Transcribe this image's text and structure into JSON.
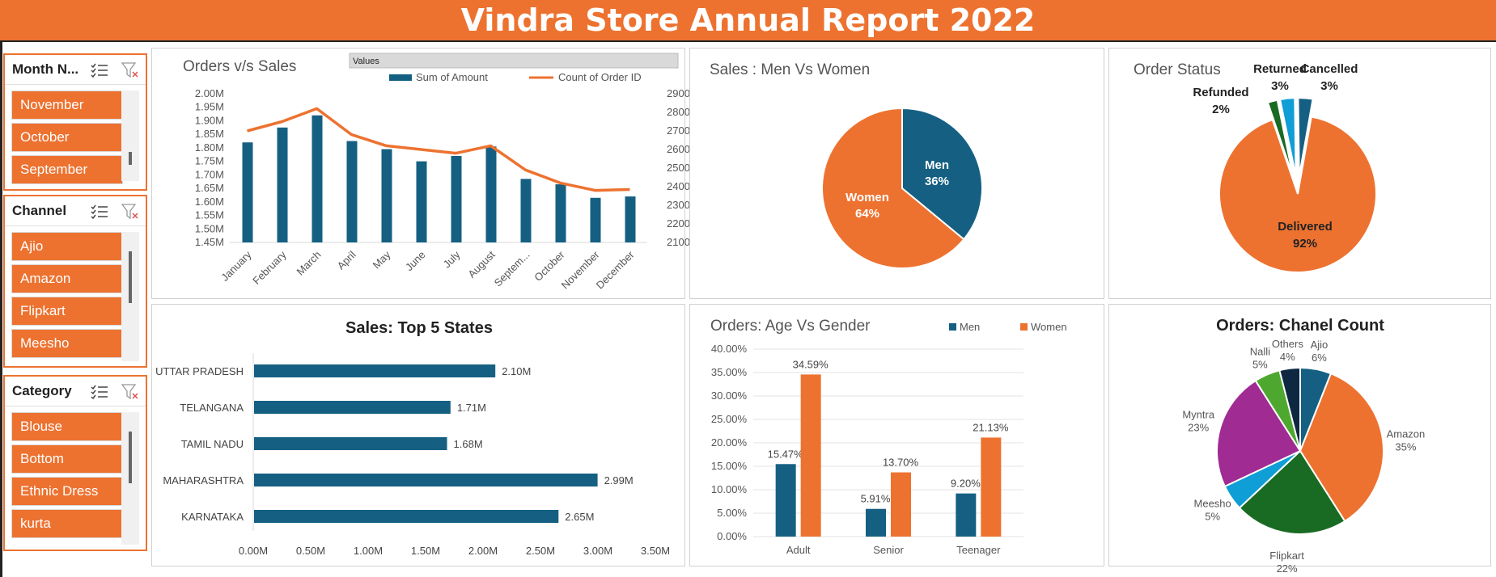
{
  "report": {
    "title": "Vindra Store Annual Report 2022"
  },
  "slicers": [
    {
      "title": "Month N...",
      "items": [
        "November",
        "October",
        "September"
      ]
    },
    {
      "title": "Channel",
      "items": [
        "Ajio",
        "Amazon",
        "Flipkart",
        "Meesho"
      ]
    },
    {
      "title": "Category",
      "items": [
        "Blouse",
        "Bottom",
        "Ethnic Dress",
        "kurta"
      ]
    }
  ],
  "chart_data": [
    {
      "id": "orders_vs_sales",
      "type": "bar+line",
      "title": "Orders v/s Sales",
      "legend_header": "Values",
      "categories": [
        "January",
        "February",
        "March",
        "April",
        "May",
        "June",
        "July",
        "August",
        "Septem...",
        "October",
        "November",
        "December"
      ],
      "series": [
        {
          "name": "Sum of Amount",
          "type": "bar",
          "axis": "left",
          "color": "#156082",
          "values": [
            1.82,
            1.875,
            1.92,
            1.825,
            1.795,
            1.75,
            1.77,
            1.805,
            1.685,
            1.665,
            1.615,
            1.62
          ]
        },
        {
          "name": "Count of Order ID",
          "type": "line",
          "axis": "right",
          "color": "#ED7230",
          "values": [
            2700,
            2750,
            2820,
            2680,
            2620,
            2600,
            2580,
            2620,
            2490,
            2420,
            2380,
            2385
          ]
        }
      ],
      "y_left": {
        "min": 1.45,
        "max": 2.0,
        "step": 0.05,
        "tick_labels": [
          "1.45M",
          "1.50M",
          "1.55M",
          "1.60M",
          "1.65M",
          "1.70M",
          "1.75M",
          "1.80M",
          "1.85M",
          "1.90M",
          "1.95M",
          "2.00M"
        ]
      },
      "y_right": {
        "min": 2100,
        "max": 2900,
        "step": 100,
        "tick_labels": [
          "2100",
          "2200",
          "2300",
          "2400",
          "2500",
          "2600",
          "2700",
          "2800",
          "2900"
        ]
      }
    },
    {
      "id": "sales_men_women",
      "type": "pie",
      "title": "Sales : Men Vs Women",
      "slices": [
        {
          "label": "Men",
          "value": 36,
          "pct_label": "36%",
          "color": "#156082"
        },
        {
          "label": "Women",
          "value": 64,
          "pct_label": "64%",
          "color": "#ED7230"
        }
      ]
    },
    {
      "id": "order_status",
      "type": "pie",
      "title": "Order Status",
      "slices": [
        {
          "label": "Delivered",
          "value": 92,
          "pct_label": "92%",
          "color": "#ED7230"
        },
        {
          "label": "Refunded",
          "value": 2,
          "pct_label": "2%",
          "color": "#196B24"
        },
        {
          "label": "Returned",
          "value": 3,
          "pct_label": "3%",
          "color": "#0F9ED5"
        },
        {
          "label": "Cancelled",
          "value": 3,
          "pct_label": "3%",
          "color": "#156082"
        }
      ]
    },
    {
      "id": "top5_states",
      "type": "bar",
      "orientation": "horizontal",
      "title": "Sales: Top 5 States",
      "categories": [
        "UTTAR PRADESH",
        "TELANGANA",
        "TAMIL NADU",
        "MAHARASHTRA",
        "KARNATAKA"
      ],
      "values": [
        2.1,
        1.71,
        1.68,
        2.99,
        2.65
      ],
      "value_labels": [
        "2.10M",
        "1.71M",
        "1.68M",
        "2.99M",
        "2.65M"
      ],
      "color": "#156082",
      "x_axis": {
        "min": 0,
        "max": 3.5,
        "tick_labels": [
          "0.00M",
          "0.50M",
          "1.00M",
          "1.50M",
          "2.00M",
          "2.50M",
          "3.00M",
          "3.50M"
        ]
      }
    },
    {
      "id": "age_vs_gender",
      "type": "bar",
      "title": "Orders: Age Vs Gender",
      "categories": [
        "Adult",
        "Senior",
        "Teenager"
      ],
      "series": [
        {
          "name": "Men",
          "color": "#156082",
          "values": [
            15.47,
            5.91,
            9.2
          ],
          "labels": [
            "15.47%",
            "5.91%",
            "9.20%"
          ]
        },
        {
          "name": "Women",
          "color": "#ED7230",
          "values": [
            34.59,
            13.7,
            21.13
          ],
          "labels": [
            "34.59%",
            "13.70%",
            "21.13%"
          ]
        }
      ],
      "y_axis": {
        "min": 0,
        "max": 40,
        "tick_labels": [
          "0.00%",
          "5.00%",
          "10.00%",
          "15.00%",
          "20.00%",
          "25.00%",
          "30.00%",
          "35.00%",
          "40.00%"
        ]
      }
    },
    {
      "id": "channel_count",
      "type": "pie",
      "title": "Orders: Chanel Count",
      "slices": [
        {
          "label": "Ajio",
          "value": 6,
          "pct_label": "6%",
          "color": "#156082"
        },
        {
          "label": "Amazon",
          "value": 35,
          "pct_label": "35%",
          "color": "#ED7230"
        },
        {
          "label": "Flipkart",
          "value": 22,
          "pct_label": "22%",
          "color": "#196B24"
        },
        {
          "label": "Meesho",
          "value": 5,
          "pct_label": "5%",
          "color": "#0F9ED5"
        },
        {
          "label": "Myntra",
          "value": 23,
          "pct_label": "23%",
          "color": "#A02B93"
        },
        {
          "label": "Nalli",
          "value": 5,
          "pct_label": "5%",
          "color": "#4EA72E"
        },
        {
          "label": "Others",
          "value": 4,
          "pct_label": "4%",
          "color": "#0E2841"
        }
      ]
    }
  ]
}
